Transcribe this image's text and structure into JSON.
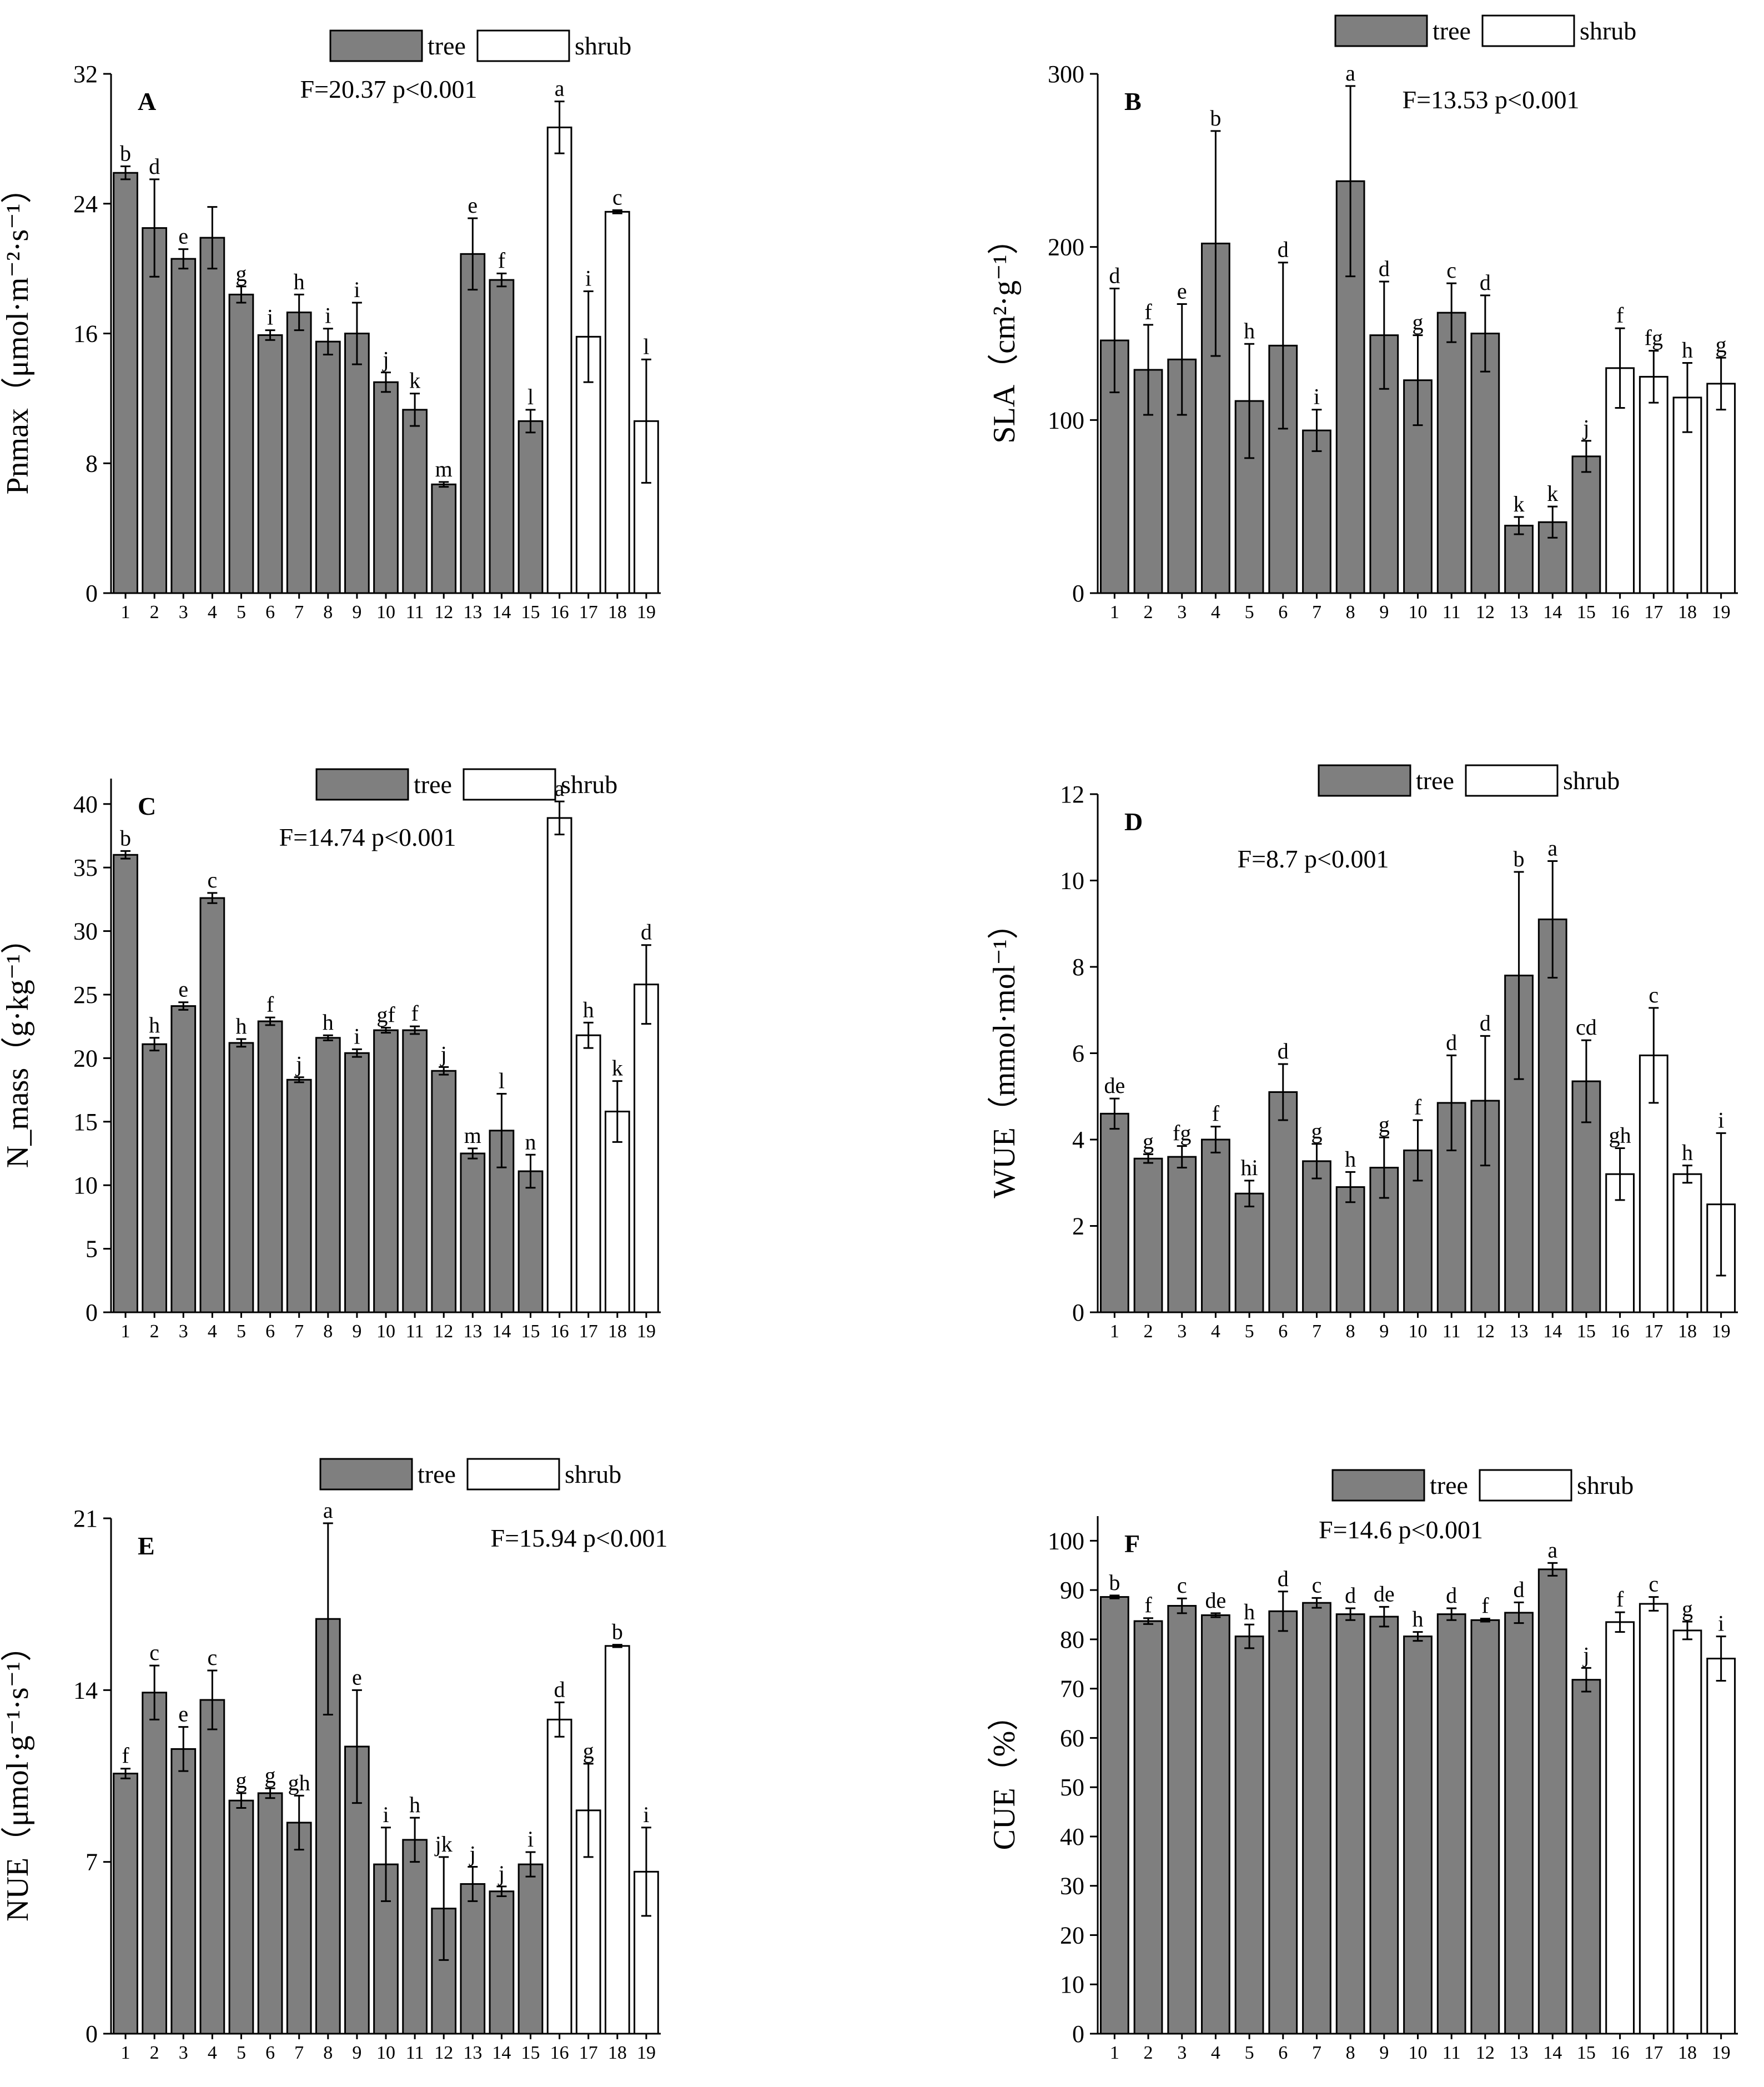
{
  "figure": {
    "legend": {
      "tree": "tree",
      "shrub": "shrub"
    },
    "colors": {
      "tree": "#7f7f7f",
      "shrub": "#ffffff",
      "stroke": "#000000"
    }
  },
  "chart_data": [
    {
      "panel": "A",
      "type": "bar",
      "title": "F=20.37 p<0.001",
      "ylabel": "Pnmax（μmol·m⁻²·s⁻¹）",
      "categories": [
        "1",
        "2",
        "3",
        "4",
        "5",
        "6",
        "7",
        "8",
        "9",
        "10",
        "11",
        "12",
        "13",
        "14",
        "15",
        "16",
        "17",
        "18",
        "19"
      ],
      "group": [
        "tree",
        "tree",
        "tree",
        "tree",
        "tree",
        "tree",
        "tree",
        "tree",
        "tree",
        "tree",
        "tree",
        "tree",
        "tree",
        "tree",
        "tree",
        "shrub",
        "shrub",
        "shrub",
        "shrub"
      ],
      "values": [
        25.9,
        22.5,
        20.6,
        21.9,
        18.4,
        15.9,
        17.3,
        15.5,
        16.0,
        13.0,
        11.3,
        6.7,
        20.9,
        19.3,
        10.6,
        28.7,
        15.8,
        23.5,
        10.6
      ],
      "errors": [
        0.4,
        3.0,
        0.6,
        1.9,
        0.5,
        0.3,
        1.1,
        0.8,
        1.9,
        0.6,
        1.0,
        0.15,
        2.2,
        0.4,
        0.7,
        1.6,
        2.8,
        0.1,
        3.8
      ],
      "letters": [
        "b",
        "d",
        "e",
        "",
        "g",
        "i",
        "h",
        "i",
        "i",
        "j",
        "k",
        "m",
        "e",
        "f",
        "l",
        "a",
        "i",
        "c",
        "l"
      ],
      "ylim": [
        0,
        32
      ],
      "yticks": [
        0,
        8,
        16,
        24,
        32
      ]
    },
    {
      "panel": "B",
      "type": "bar",
      "title": "F=13.53 p<0.001",
      "ylabel": "SLA（cm²·g⁻¹）",
      "categories": [
        "1",
        "2",
        "3",
        "4",
        "5",
        "6",
        "7",
        "8",
        "9",
        "10",
        "11",
        "12",
        "13",
        "14",
        "15",
        "16",
        "17",
        "18",
        "19"
      ],
      "group": [
        "tree",
        "tree",
        "tree",
        "tree",
        "tree",
        "tree",
        "tree",
        "tree",
        "tree",
        "tree",
        "tree",
        "tree",
        "tree",
        "tree",
        "tree",
        "shrub",
        "shrub",
        "shrub",
        "shrub"
      ],
      "values": [
        146,
        129,
        135,
        202,
        111,
        143,
        94,
        238,
        149,
        123,
        162,
        150,
        39,
        41,
        79,
        130,
        125,
        113,
        121
      ],
      "errors": [
        30,
        26,
        32,
        65,
        33,
        48,
        12,
        55,
        31,
        26,
        17,
        22,
        5,
        9,
        9,
        23,
        15,
        20,
        15
      ],
      "letters": [
        "d",
        "f",
        "e",
        "b",
        "h",
        "d",
        "i",
        "a",
        "d",
        "g",
        "c",
        "d",
        "k",
        "k",
        "j",
        "f",
        "fg",
        "h",
        "g"
      ],
      "ylim": [
        0,
        300
      ],
      "yticks": [
        0,
        100,
        200,
        300
      ]
    },
    {
      "panel": "C",
      "type": "bar",
      "title": "F=14.74 p<0.001",
      "ylabel": "N_mass（g·kg⁻¹）",
      "categories": [
        "1",
        "2",
        "3",
        "4",
        "5",
        "6",
        "7",
        "8",
        "9",
        "10",
        "11",
        "12",
        "13",
        "14",
        "15",
        "16",
        "17",
        "18",
        "19"
      ],
      "group": [
        "tree",
        "tree",
        "tree",
        "tree",
        "tree",
        "tree",
        "tree",
        "tree",
        "tree",
        "tree",
        "tree",
        "tree",
        "tree",
        "tree",
        "tree",
        "shrub",
        "shrub",
        "shrub",
        "shrub"
      ],
      "values": [
        36.0,
        21.1,
        24.1,
        32.6,
        21.2,
        22.9,
        18.3,
        21.6,
        20.4,
        22.2,
        22.2,
        19.0,
        12.5,
        14.3,
        11.1,
        38.9,
        21.8,
        15.8,
        25.8
      ],
      "errors": [
        0.3,
        0.5,
        0.3,
        0.4,
        0.3,
        0.3,
        0.2,
        0.2,
        0.3,
        0.2,
        0.3,
        0.3,
        0.4,
        2.9,
        1.3,
        1.3,
        1.0,
        2.4,
        3.1
      ],
      "letters": [
        "b",
        "h",
        "e",
        "c",
        "h",
        "f",
        "j",
        "h",
        "i",
        "gf",
        "f",
        "j",
        "m",
        "l",
        "n",
        "a",
        "h",
        "k",
        "d"
      ],
      "ylim": [
        0,
        42
      ],
      "yticks": [
        0,
        5,
        10,
        15,
        20,
        25,
        30,
        35,
        40
      ]
    },
    {
      "panel": "D",
      "type": "bar",
      "title": "F=8.7 p<0.001",
      "ylabel": "WUE（mmol·mol⁻¹）",
      "categories": [
        "1",
        "2",
        "3",
        "4",
        "5",
        "6",
        "7",
        "8",
        "9",
        "10",
        "11",
        "12",
        "13",
        "14",
        "15",
        "16",
        "17",
        "18",
        "19"
      ],
      "group": [
        "tree",
        "tree",
        "tree",
        "tree",
        "tree",
        "tree",
        "tree",
        "tree",
        "tree",
        "tree",
        "tree",
        "tree",
        "tree",
        "tree",
        "tree",
        "shrub",
        "shrub",
        "shrub",
        "shrub"
      ],
      "values": [
        4.6,
        3.56,
        3.6,
        4.0,
        2.75,
        5.1,
        3.5,
        2.9,
        3.35,
        3.75,
        4.85,
        4.9,
        7.8,
        9.1,
        5.35,
        3.2,
        5.95,
        3.2,
        2.5
      ],
      "errors": [
        0.35,
        0.1,
        0.25,
        0.3,
        0.3,
        0.65,
        0.4,
        0.35,
        0.7,
        0.7,
        1.1,
        1.5,
        2.4,
        1.35,
        0.95,
        0.6,
        1.1,
        0.2,
        1.65
      ],
      "letters": [
        "de",
        "g",
        "fg",
        "f",
        "hi",
        "d",
        "g",
        "h",
        "g",
        "f",
        "d",
        "d",
        "b",
        "a",
        "cd",
        "gh",
        "c",
        "h",
        "i"
      ],
      "ylim": [
        0,
        12
      ],
      "yticks": [
        0,
        2,
        4,
        6,
        8,
        10,
        12
      ]
    },
    {
      "panel": "E",
      "type": "bar",
      "title": "F=15.94 p<0.001",
      "ylabel": "NUE（μmol·g⁻¹·s⁻¹）",
      "categories": [
        "1",
        "2",
        "3",
        "4",
        "5",
        "6",
        "7",
        "8",
        "9",
        "10",
        "11",
        "12",
        "13",
        "14",
        "15",
        "16",
        "17",
        "18",
        "19"
      ],
      "group": [
        "tree",
        "tree",
        "tree",
        "tree",
        "tree",
        "tree",
        "tree",
        "tree",
        "tree",
        "tree",
        "tree",
        "tree",
        "tree",
        "tree",
        "tree",
        "shrub",
        "shrub",
        "shrub",
        "shrub"
      ],
      "values": [
        10.6,
        13.9,
        11.6,
        13.6,
        9.5,
        9.8,
        8.6,
        16.9,
        11.7,
        6.9,
        7.9,
        5.1,
        6.1,
        5.8,
        6.9,
        12.8,
        9.1,
        15.8,
        6.6
      ],
      "errors": [
        0.2,
        1.1,
        0.9,
        1.2,
        0.3,
        0.2,
        1.1,
        3.9,
        2.3,
        1.5,
        0.9,
        2.1,
        0.7,
        0.2,
        0.5,
        0.7,
        1.9,
        0.05,
        1.8
      ],
      "letters": [
        "f",
        "c",
        "e",
        "c",
        "g",
        "g",
        "gh",
        "a",
        "e",
        "i",
        "h",
        "jk",
        "j",
        "j",
        "i",
        "d",
        "g",
        "b",
        "i"
      ],
      "ylim": [
        0,
        21
      ],
      "yticks": [
        0,
        7,
        14,
        21
      ]
    },
    {
      "panel": "F",
      "type": "bar",
      "title": "F=14.6 p<0.001",
      "ylabel": "CUE（%）",
      "categories": [
        "1",
        "2",
        "3",
        "4",
        "5",
        "6",
        "7",
        "8",
        "9",
        "10",
        "11",
        "12",
        "13",
        "14",
        "15",
        "16",
        "17",
        "18",
        "19"
      ],
      "group": [
        "tree",
        "tree",
        "tree",
        "tree",
        "tree",
        "tree",
        "tree",
        "tree",
        "tree",
        "tree",
        "tree",
        "tree",
        "tree",
        "tree",
        "tree",
        "shrub",
        "shrub",
        "shrub",
        "shrub"
      ],
      "values": [
        88.6,
        83.7,
        86.8,
        84.9,
        80.6,
        85.7,
        87.4,
        85.1,
        84.6,
        80.6,
        85.1,
        83.9,
        85.4,
        94.2,
        71.8,
        83.5,
        87.2,
        81.8,
        76.1
      ],
      "errors": [
        0.3,
        0.6,
        1.5,
        0.4,
        2.4,
        4.0,
        1.0,
        1.2,
        2.0,
        0.9,
        1.2,
        0.3,
        2.1,
        1.3,
        2.4,
        2.0,
        1.4,
        1.8,
        4.5
      ],
      "letters": [
        "b",
        "f",
        "c",
        "de",
        "h",
        "d",
        "c",
        "d",
        "de",
        "h",
        "d",
        "f",
        "d",
        "a",
        "j",
        "f",
        "c",
        "g",
        "i"
      ],
      "ylim": [
        0,
        105
      ],
      "yticks": [
        0,
        10,
        20,
        30,
        40,
        50,
        60,
        70,
        80,
        90,
        100
      ]
    }
  ]
}
